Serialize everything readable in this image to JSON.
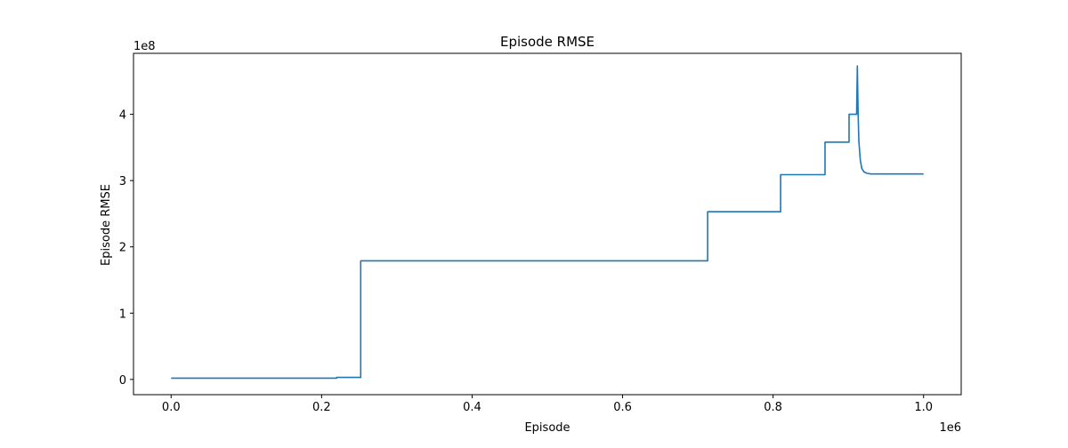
{
  "chart_data": {
    "type": "line",
    "title": "Episode RMSE",
    "xlabel": "Episode",
    "ylabel": "Episode RMSE",
    "x_offset_label": "1e6",
    "y_offset_label": "1e8",
    "xlim": [
      -0.05,
      1.05
    ],
    "ylim": [
      -0.23,
      4.92
    ],
    "xticks": [
      0.0,
      0.2,
      0.4,
      0.6,
      0.8,
      1.0
    ],
    "xtick_labels": [
      "0.0",
      "0.2",
      "0.4",
      "0.6",
      "0.8",
      "1.0"
    ],
    "yticks": [
      0,
      1,
      2,
      3,
      4
    ],
    "ytick_labels": [
      "0",
      "1",
      "2",
      "3",
      "4"
    ],
    "grid": false,
    "line_color": "#1f77b4",
    "series": [
      {
        "x": [
          0.0,
          0.22,
          0.22,
          0.252,
          0.252,
          0.713,
          0.713,
          0.81,
          0.81,
          0.869,
          0.869,
          0.901,
          0.901,
          0.911,
          0.912,
          0.913,
          0.914,
          0.916,
          0.918,
          0.921,
          0.925,
          0.93,
          0.94,
          1.0
        ],
        "y": [
          0.02,
          0.02,
          0.03,
          0.03,
          1.79,
          1.79,
          2.53,
          2.53,
          3.09,
          3.09,
          3.58,
          3.58,
          4.0,
          4.0,
          4.73,
          4.0,
          3.6,
          3.3,
          3.18,
          3.13,
          3.11,
          3.1,
          3.1,
          3.1
        ]
      }
    ]
  }
}
